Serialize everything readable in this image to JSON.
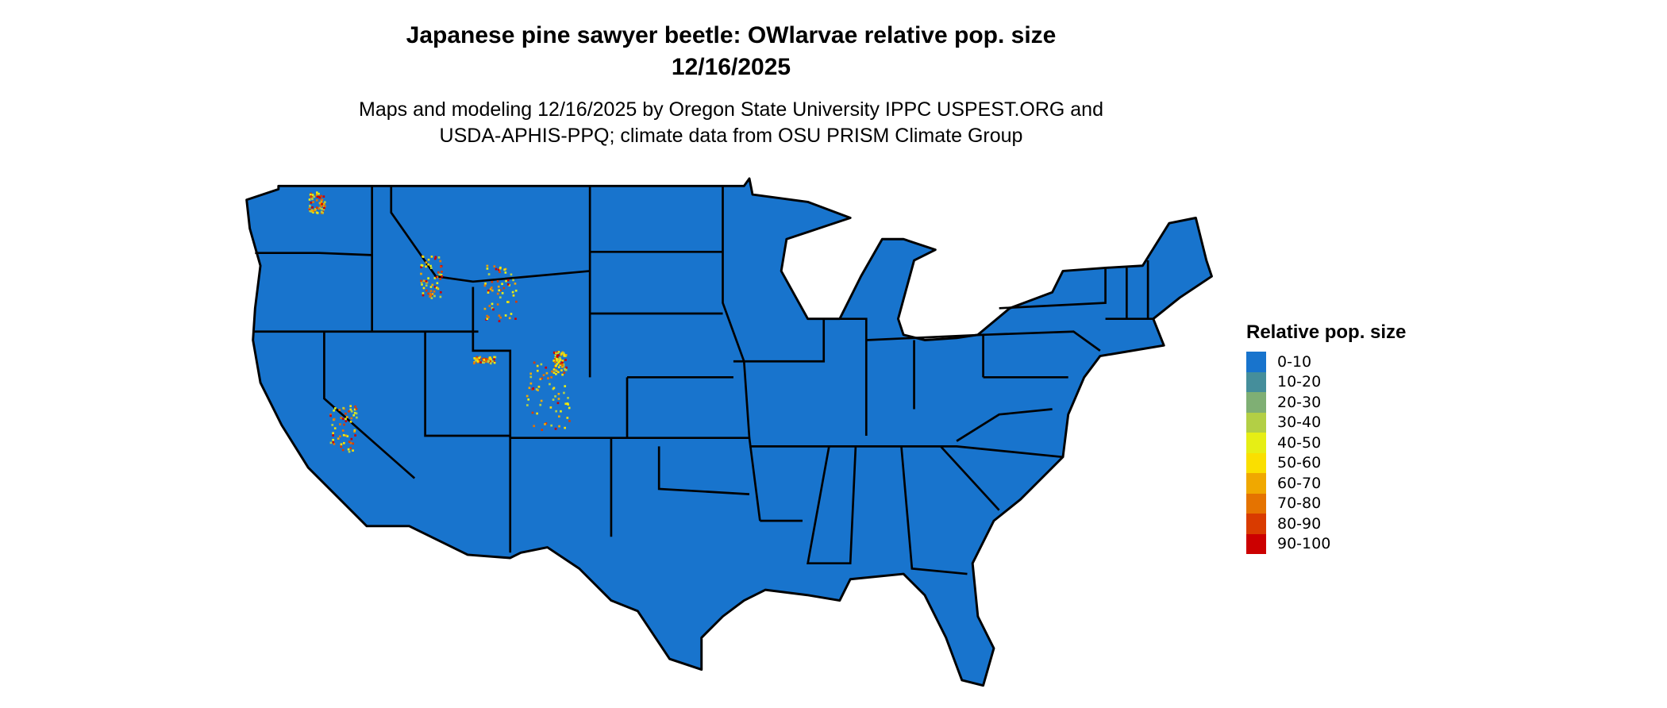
{
  "title": {
    "line1": "Japanese pine sawyer beetle: OWlarvae relative pop. size",
    "line2": "12/16/2025"
  },
  "subtitle": {
    "line1": "Maps and modeling 12/16/2025 by Oregon State University IPPC USPEST.ORG and",
    "line2": "USDA-APHIS-PPQ; climate data from OSU PRISM Climate Group"
  },
  "map": {
    "region": "Contiguous United States",
    "base_fill": "#1874CD",
    "border_color": "#000000"
  },
  "legend": {
    "title": "Relative pop. size",
    "items": [
      {
        "label": "0-10",
        "color": "#1874CD"
      },
      {
        "label": "10-20",
        "color": "#458E9B"
      },
      {
        "label": "20-30",
        "color": "#7FAF74"
      },
      {
        "label": "30-40",
        "color": "#B3CF45"
      },
      {
        "label": "40-50",
        "color": "#E6EE15"
      },
      {
        "label": "50-60",
        "color": "#FADF00"
      },
      {
        "label": "60-70",
        "color": "#F0A800"
      },
      {
        "label": "70-80",
        "color": "#E57300"
      },
      {
        "label": "80-90",
        "color": "#D93B00"
      },
      {
        "label": "90-100",
        "color": "#CC0000"
      }
    ]
  }
}
